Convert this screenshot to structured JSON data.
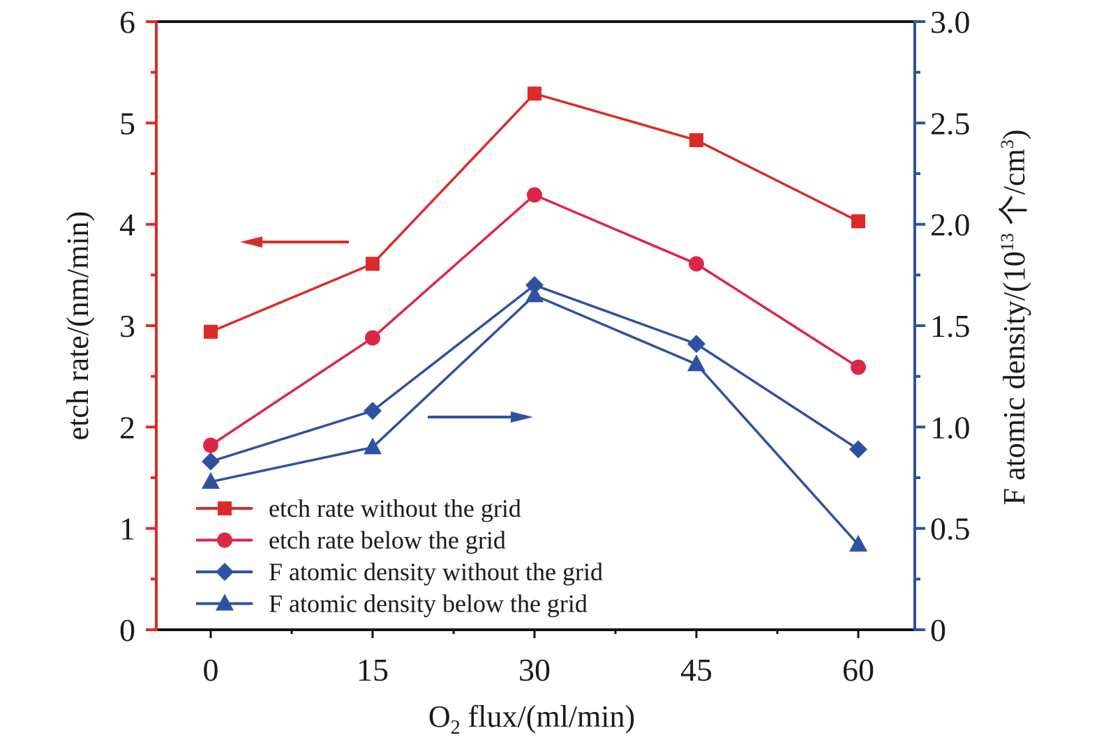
{
  "chart_data": {
    "type": "line",
    "title": "",
    "xlabel": "O₂ flux/(ml/min)",
    "xlabel_parts": {
      "main": "O",
      "sub": "2",
      "rest": " flux/(ml/min)"
    },
    "ylabel_left": "etch rate/(nm/min)",
    "ylabel_right": "F atomic density/(10¹³ 个/cm³)",
    "ylabel_right_parts": {
      "pre": "F atomic density/(10",
      "sup1": "13",
      "mid": " 个/cm",
      "sup2": "3",
      "post": ")"
    },
    "x": [
      0,
      15,
      30,
      45,
      60
    ],
    "x_ticks": [
      "0",
      "15",
      "30",
      "45",
      "60"
    ],
    "xlim": [
      -5,
      65
    ],
    "ylim_left": [
      0,
      6
    ],
    "ylim_right": [
      0,
      3.0
    ],
    "y_ticks_left": [
      "0",
      "1",
      "2",
      "3",
      "4",
      "5",
      "6"
    ],
    "y_ticks_right": [
      "0",
      "0.5",
      "1.0",
      "1.5",
      "2.0",
      "2.5",
      "3.0"
    ],
    "grid": false,
    "legend_position": "bottom-left",
    "series": [
      {
        "name": "etch rate without the grid",
        "axis": "left",
        "marker": "square",
        "color": "#dc2b27",
        "values": [
          2.94,
          3.61,
          5.29,
          4.83,
          4.03
        ]
      },
      {
        "name": "etch rate below the grid",
        "axis": "left",
        "marker": "circle",
        "color": "#dc2648",
        "values": [
          1.82,
          2.88,
          4.29,
          3.61,
          2.59
        ]
      },
      {
        "name": "F atomic density without the grid",
        "axis": "right",
        "marker": "diamond",
        "color": "#2f51a1",
        "values": [
          0.83,
          1.08,
          1.7,
          1.41,
          0.89
        ]
      },
      {
        "name": "F atomic density below the grid",
        "axis": "right",
        "marker": "triangle",
        "color": "#2f51a1",
        "values": [
          0.73,
          0.9,
          1.65,
          1.31,
          0.42
        ]
      }
    ],
    "annotations": [
      {
        "type": "arrow",
        "direction": "left",
        "meaning": "red series use left axis",
        "color": "#dc2b27"
      },
      {
        "type": "arrow",
        "direction": "right",
        "meaning": "blue series use right axis",
        "color": "#2f51a1"
      }
    ],
    "axis_colors": {
      "left": "#dc2b27",
      "right": "#2f51a1",
      "frame": "#111111"
    }
  }
}
